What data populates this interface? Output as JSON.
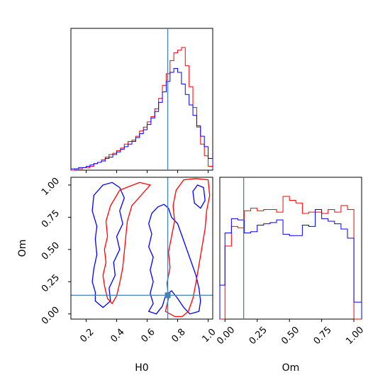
{
  "chart_data": {
    "type": "corner",
    "parameters": [
      "H0",
      "Om"
    ],
    "truth": {
      "H0": 0.735,
      "Om": 0.145
    },
    "colors": {
      "series_a": "#0000ff",
      "series_b": "#ff0000",
      "truth": "#4682b4"
    },
    "axes": {
      "H0": {
        "range": [
          0.1,
          1.03
        ],
        "ticks": [
          "0.2",
          "0.4",
          "0.6",
          "0.8",
          "1.0"
        ],
        "tick_values": [
          0.2,
          0.4,
          0.6,
          0.8,
          1.0
        ]
      },
      "Om": {
        "range": [
          -0.04,
          1.06
        ],
        "ticks": [
          "0.00",
          "0.25",
          "0.50",
          "0.75",
          "1.00"
        ],
        "tick_values": [
          0.0,
          0.25,
          0.5,
          0.75,
          1.0
        ]
      }
    },
    "hist_H0": {
      "edges": [
        0.1,
        0.125,
        0.15,
        0.175,
        0.2,
        0.225,
        0.25,
        0.275,
        0.3,
        0.325,
        0.35,
        0.375,
        0.4,
        0.425,
        0.45,
        0.475,
        0.5,
        0.525,
        0.55,
        0.575,
        0.6,
        0.625,
        0.65,
        0.675,
        0.7,
        0.725,
        0.75,
        0.775,
        0.8,
        0.825,
        0.85,
        0.875,
        0.9,
        0.925,
        0.95,
        0.975,
        1.0,
        1.03
      ],
      "series_a": [
        0.01,
        0.01,
        0.02,
        0.02,
        0.03,
        0.04,
        0.05,
        0.06,
        0.07,
        0.09,
        0.1,
        0.12,
        0.14,
        0.16,
        0.18,
        0.2,
        0.22,
        0.25,
        0.28,
        0.31,
        0.35,
        0.4,
        0.45,
        0.52,
        0.6,
        0.68,
        0.75,
        0.78,
        0.75,
        0.66,
        0.58,
        0.5,
        0.42,
        0.34,
        0.26,
        0.18,
        0.09
      ],
      "series_b": [
        0.0,
        0.01,
        0.01,
        0.02,
        0.02,
        0.03,
        0.05,
        0.06,
        0.08,
        0.1,
        0.12,
        0.13,
        0.15,
        0.17,
        0.2,
        0.22,
        0.23,
        0.26,
        0.3,
        0.33,
        0.37,
        0.41,
        0.47,
        0.55,
        0.65,
        0.74,
        0.84,
        0.9,
        0.92,
        0.94,
        0.8,
        0.64,
        0.48,
        0.33,
        0.2,
        0.11,
        0.03
      ]
    },
    "hist_Om": {
      "edges": [
        -0.04,
        0.0,
        0.05,
        0.1,
        0.15,
        0.2,
        0.25,
        0.3,
        0.35,
        0.4,
        0.45,
        0.5,
        0.55,
        0.6,
        0.65,
        0.7,
        0.75,
        0.8,
        0.85,
        0.9,
        0.95,
        1.0,
        1.06
      ],
      "series_a": [
        0.26,
        0.66,
        0.77,
        0.76,
        0.66,
        0.67,
        0.72,
        0.73,
        0.74,
        0.76,
        0.65,
        0.64,
        0.64,
        0.72,
        0.71,
        0.84,
        0.77,
        0.75,
        0.73,
        0.69,
        0.62,
        0.13
      ],
      "series_b": [
        0.0,
        0.56,
        0.71,
        0.7,
        0.83,
        0.85,
        0.83,
        0.84,
        0.84,
        0.82,
        0.94,
        0.91,
        0.89,
        0.81,
        0.82,
        0.82,
        0.81,
        0.84,
        0.82,
        0.87,
        0.84,
        0.0
      ]
    },
    "contours": {
      "series_a": [
        [
          [
            0.26,
            0.17
          ],
          [
            0.24,
            0.25
          ],
          [
            0.25,
            0.35
          ],
          [
            0.27,
            0.46
          ],
          [
            0.26,
            0.58
          ],
          [
            0.27,
            0.68
          ],
          [
            0.24,
            0.8
          ],
          [
            0.25,
            0.92
          ],
          [
            0.31,
            1.0
          ],
          [
            0.37,
            1.02
          ],
          [
            0.42,
            0.98
          ],
          [
            0.45,
            0.9
          ],
          [
            0.42,
            0.8
          ],
          [
            0.44,
            0.7
          ],
          [
            0.4,
            0.6
          ],
          [
            0.42,
            0.5
          ],
          [
            0.38,
            0.4
          ],
          [
            0.39,
            0.3
          ],
          [
            0.35,
            0.2
          ],
          [
            0.36,
            0.1
          ],
          [
            0.31,
            0.05
          ],
          [
            0.26,
            0.1
          ],
          [
            0.26,
            0.17
          ]
        ],
        [
          [
            0.61,
            0.02
          ],
          [
            0.64,
            0.08
          ],
          [
            0.62,
            0.16
          ],
          [
            0.64,
            0.25
          ],
          [
            0.62,
            0.34
          ],
          [
            0.64,
            0.44
          ],
          [
            0.61,
            0.52
          ],
          [
            0.63,
            0.62
          ],
          [
            0.61,
            0.7
          ],
          [
            0.63,
            0.78
          ],
          [
            0.67,
            0.83
          ],
          [
            0.71,
            0.85
          ],
          [
            0.74,
            0.82
          ],
          [
            0.76,
            0.75
          ],
          [
            0.8,
            0.7
          ],
          [
            0.83,
            0.6
          ],
          [
            0.86,
            0.5
          ],
          [
            0.89,
            0.4
          ],
          [
            0.92,
            0.3
          ],
          [
            0.94,
            0.2
          ],
          [
            0.95,
            0.1
          ],
          [
            0.94,
            0.02
          ],
          [
            0.88,
            0.0
          ],
          [
            0.84,
            0.05
          ],
          [
            0.8,
            0.12
          ],
          [
            0.76,
            0.18
          ],
          [
            0.72,
            0.14
          ],
          [
            0.7,
            0.06
          ],
          [
            0.66,
            0.0
          ],
          [
            0.61,
            0.02
          ]
        ],
        [
          [
            0.9,
            0.95
          ],
          [
            0.93,
            1.0
          ],
          [
            0.97,
            0.98
          ],
          [
            0.98,
            0.88
          ],
          [
            0.95,
            0.82
          ],
          [
            0.91,
            0.86
          ],
          [
            0.9,
            0.95
          ]
        ]
      ],
      "series_b": [
        [
          [
            0.32,
            0.22
          ],
          [
            0.31,
            0.3
          ],
          [
            0.33,
            0.4
          ],
          [
            0.32,
            0.5
          ],
          [
            0.34,
            0.6
          ],
          [
            0.33,
            0.72
          ],
          [
            0.36,
            0.84
          ],
          [
            0.42,
            0.96
          ],
          [
            0.55,
            1.02
          ],
          [
            0.62,
            1.0
          ],
          [
            0.56,
            0.92
          ],
          [
            0.5,
            0.84
          ],
          [
            0.47,
            0.72
          ],
          [
            0.46,
            0.6
          ],
          [
            0.45,
            0.48
          ],
          [
            0.44,
            0.36
          ],
          [
            0.42,
            0.24
          ],
          [
            0.4,
            0.14
          ],
          [
            0.37,
            0.08
          ],
          [
            0.34,
            0.12
          ],
          [
            0.32,
            0.22
          ]
        ],
        [
          [
            0.72,
            0.02
          ],
          [
            0.74,
            0.12
          ],
          [
            0.73,
            0.24
          ],
          [
            0.75,
            0.36
          ],
          [
            0.74,
            0.48
          ],
          [
            0.76,
            0.6
          ],
          [
            0.78,
            0.72
          ],
          [
            0.77,
            0.84
          ],
          [
            0.79,
            0.96
          ],
          [
            0.84,
            1.04
          ],
          [
            0.92,
            1.05
          ],
          [
            1.0,
            1.04
          ],
          [
            1.01,
            0.92
          ],
          [
            0.99,
            0.8
          ],
          [
            0.98,
            0.66
          ],
          [
            0.96,
            0.52
          ],
          [
            0.94,
            0.38
          ],
          [
            0.92,
            0.24
          ],
          [
            0.9,
            0.12
          ],
          [
            0.87,
            0.02
          ],
          [
            0.83,
            -0.02
          ],
          [
            0.78,
            -0.02
          ],
          [
            0.72,
            0.02
          ]
        ]
      ]
    },
    "xlabel_H0": "H0",
    "xlabel_Om": "Om",
    "ylabel_Om": "Om"
  }
}
